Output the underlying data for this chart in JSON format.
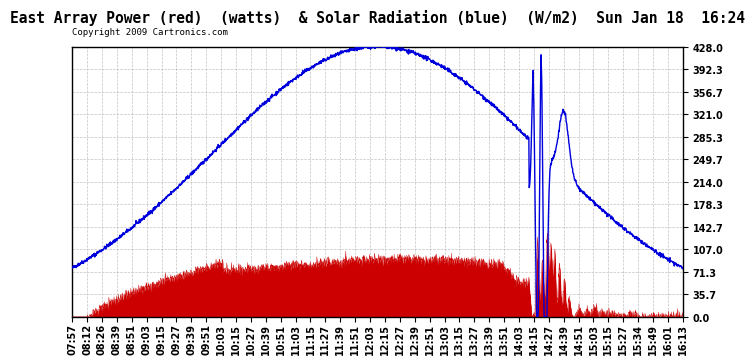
{
  "title": "East Array Power (red)  (watts)  & Solar Radiation (blue)  (W/m2)  Sun Jan 18  16:24",
  "copyright": "Copyright 2009 Cartronics.com",
  "y_max": 428.0,
  "y_min": 0.0,
  "y_ticks": [
    0.0,
    35.7,
    71.3,
    107.0,
    142.7,
    178.3,
    214.0,
    249.7,
    285.3,
    321.0,
    356.7,
    392.3,
    428.0
  ],
  "x_labels": [
    "07:57",
    "08:12",
    "08:26",
    "08:39",
    "08:51",
    "09:03",
    "09:15",
    "09:27",
    "09:39",
    "09:51",
    "10:03",
    "10:15",
    "10:27",
    "10:39",
    "10:51",
    "11:03",
    "11:15",
    "11:27",
    "11:39",
    "11:51",
    "12:03",
    "12:15",
    "12:27",
    "12:39",
    "12:51",
    "13:03",
    "13:15",
    "13:27",
    "13:39",
    "13:51",
    "14:03",
    "14:15",
    "14:27",
    "14:39",
    "14:51",
    "15:03",
    "15:15",
    "15:27",
    "15:34",
    "15:49",
    "16:01",
    "16:13"
  ],
  "blue_color": "#0000dd",
  "red_color": "#cc0000",
  "bg_color": "#ffffff",
  "grid_color": "#aaaaaa",
  "title_fontsize": 10.5,
  "tick_fontsize": 7,
  "copyright_fontsize": 6.5
}
